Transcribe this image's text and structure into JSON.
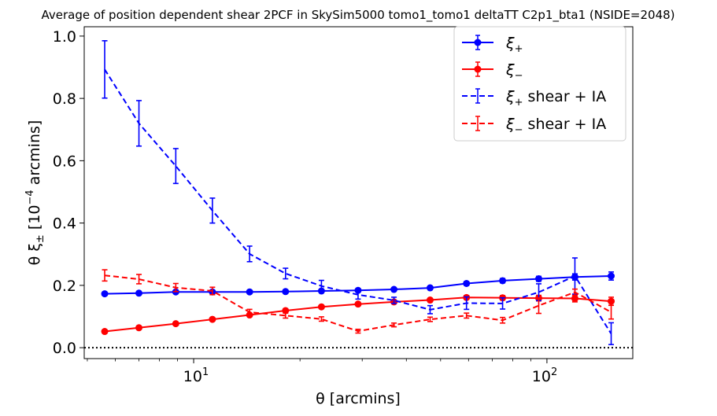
{
  "chart_data": {
    "type": "line",
    "title": "Average of position dependent shear 2PCF in SkySim5000 tomo1_tomo1 deltaTT C2p1_bta1 (NSIDE=2048)",
    "xlabel": "θ [arcmins]",
    "ylabel_parts": [
      "θ ξ",
      "±",
      " [10",
      "−4",
      " arcmins]"
    ],
    "xscale": "log",
    "xlim": [
      4.9,
      175
    ],
    "ylim": [
      -0.035,
      1.03
    ],
    "yticks": [
      0.0,
      0.2,
      0.4,
      0.6,
      0.8,
      1.0
    ],
    "ytick_labels": [
      "0.0",
      "0.2",
      "0.4",
      "0.6",
      "0.8",
      "1.0"
    ],
    "xticks_major": [
      10,
      100
    ],
    "xtick_labels": [
      {
        "base": "10",
        "exp": "1"
      },
      {
        "base": "10",
        "exp": "2"
      }
    ],
    "zero_line": true,
    "x": [
      5.6,
      7.0,
      8.9,
      11.3,
      14.4,
      18.2,
      23.0,
      29.2,
      36.9,
      46.7,
      59.2,
      74.9,
      94.8,
      120.0,
      152.0
    ],
    "series": [
      {
        "name": "ξ+",
        "name_main": "ξ",
        "name_sub": "+",
        "name_rest": "",
        "color": "#0000ff",
        "style": "solid",
        "marker": "circle",
        "values": [
          0.173,
          0.175,
          0.179,
          0.179,
          0.179,
          0.18,
          0.182,
          0.184,
          0.187,
          0.192,
          0.206,
          0.215,
          0.221,
          0.227,
          0.23
        ],
        "errors": [
          0.004,
          0.004,
          0.004,
          0.004,
          0.004,
          0.004,
          0.004,
          0.004,
          0.004,
          0.005,
          0.006,
          0.007,
          0.008,
          0.01,
          0.013
        ]
      },
      {
        "name": "ξ−",
        "name_main": "ξ",
        "name_sub": "−",
        "name_rest": "",
        "color": "#ff0000",
        "style": "solid",
        "marker": "circle",
        "values": [
          0.052,
          0.064,
          0.077,
          0.091,
          0.105,
          0.119,
          0.131,
          0.14,
          0.147,
          0.153,
          0.161,
          0.16,
          0.159,
          0.158,
          0.149
        ],
        "errors": [
          0.004,
          0.004,
          0.004,
          0.004,
          0.004,
          0.004,
          0.004,
          0.004,
          0.004,
          0.005,
          0.006,
          0.007,
          0.009,
          0.011,
          0.013
        ]
      },
      {
        "name": "ξ+ shear + IA",
        "name_main": "ξ",
        "name_sub": "+",
        "name_rest": " shear + IA",
        "color": "#0000ff",
        "style": "dashed",
        "marker": "none",
        "values": [
          0.893,
          0.72,
          0.583,
          0.44,
          0.301,
          0.238,
          0.198,
          0.17,
          0.152,
          0.122,
          0.143,
          0.142,
          0.178,
          0.23,
          0.045
        ],
        "errors": [
          0.092,
          0.073,
          0.056,
          0.04,
          0.025,
          0.017,
          0.018,
          0.014,
          0.01,
          0.013,
          0.02,
          0.018,
          0.027,
          0.058,
          0.035
        ]
      },
      {
        "name": "ξ− shear + IA",
        "name_main": "ξ",
        "name_sub": "−",
        "name_rest": " shear + IA",
        "color": "#ff0000",
        "style": "dashed",
        "marker": "none",
        "values": [
          0.232,
          0.22,
          0.193,
          0.182,
          0.114,
          0.103,
          0.092,
          0.053,
          0.073,
          0.091,
          0.103,
          0.088,
          0.135,
          0.178,
          0.114
        ],
        "errors": [
          0.018,
          0.015,
          0.013,
          0.012,
          0.009,
          0.008,
          0.007,
          0.006,
          0.006,
          0.007,
          0.008,
          0.009,
          0.025,
          0.01,
          0.022
        ]
      }
    ],
    "legend_position": "upper-right"
  }
}
